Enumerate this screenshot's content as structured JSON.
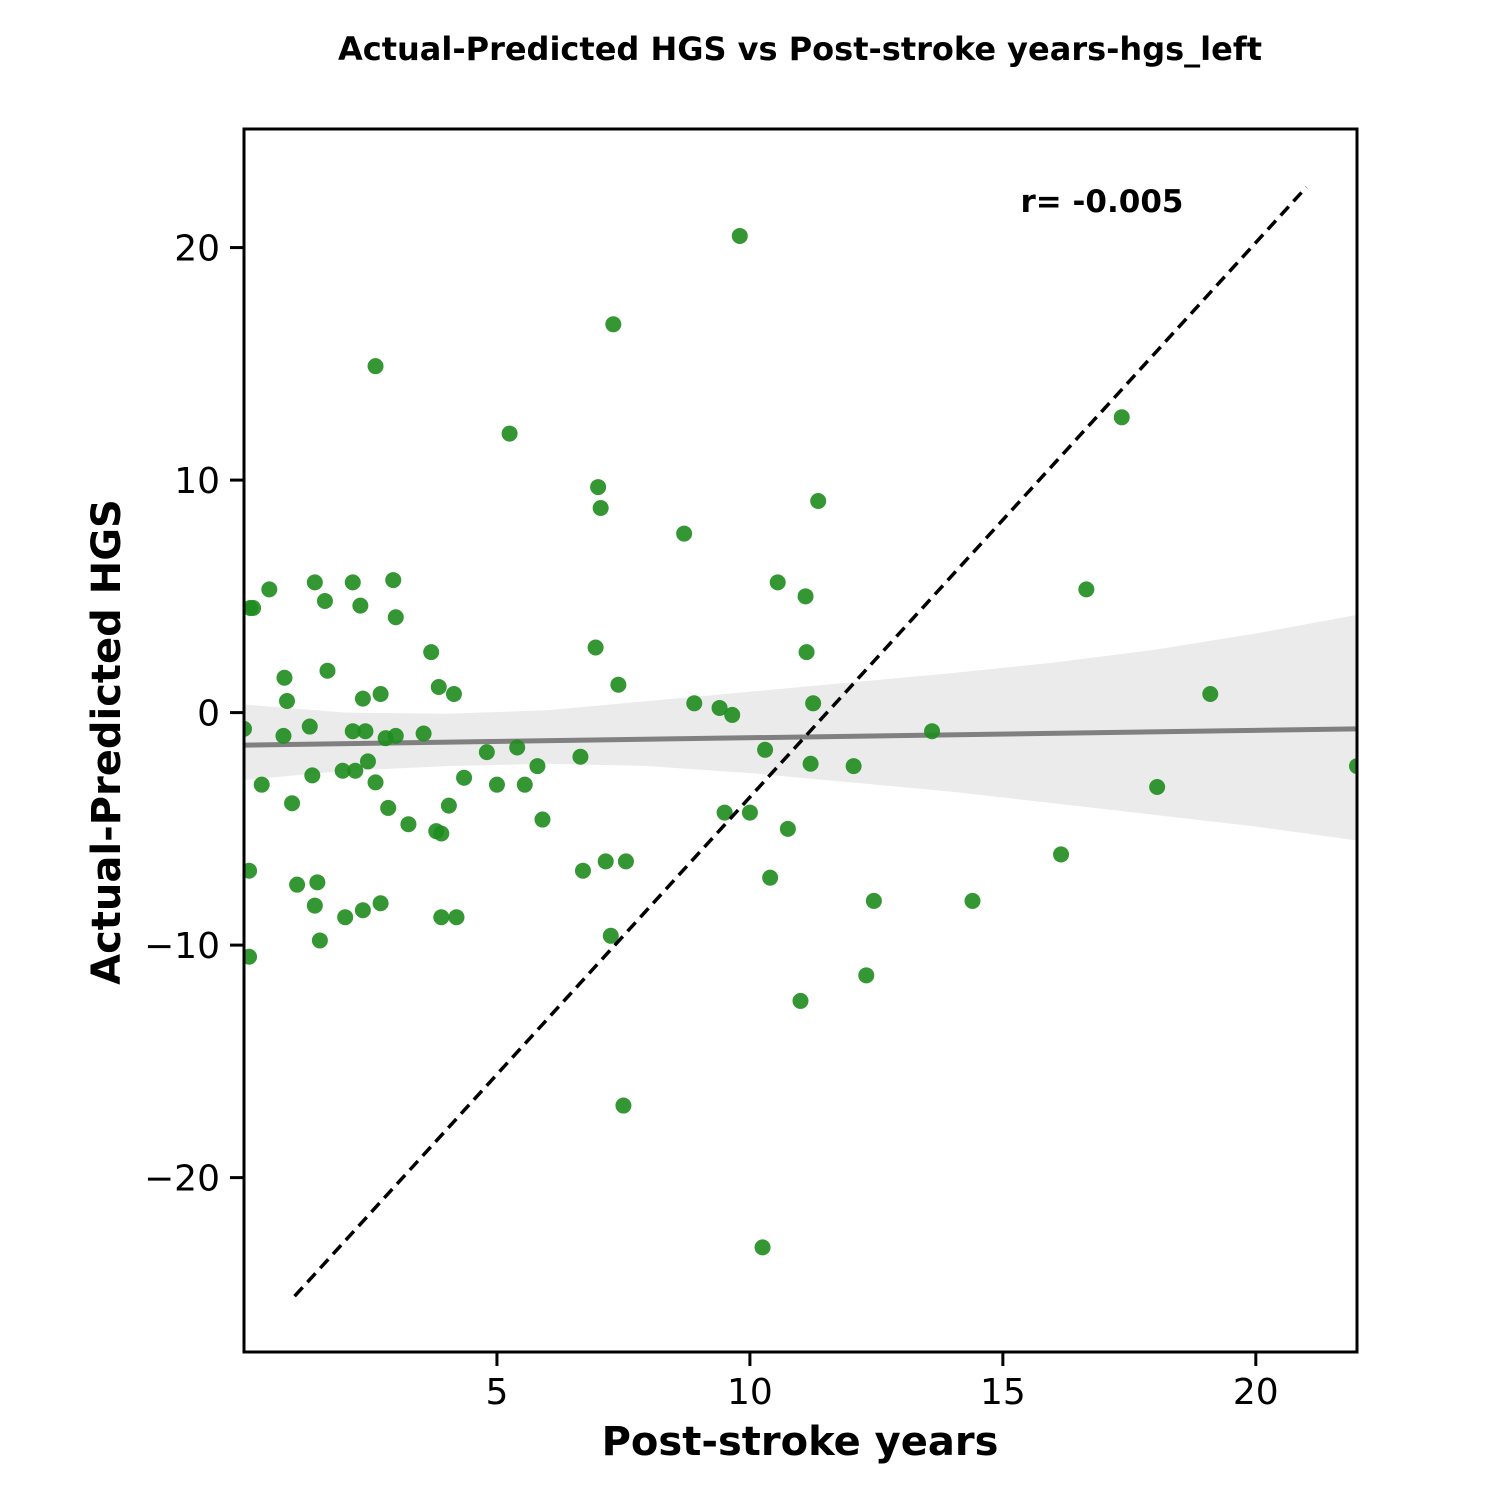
{
  "chart_data": {
    "type": "scatter",
    "title": "Actual-Predicted HGS vs Post-stroke years-hgs_left",
    "xlabel": "Post-stroke years",
    "ylabel": "Actual-Predicted HGS",
    "xlim": [
      0,
      22
    ],
    "ylim": [
      -27.5,
      25.1
    ],
    "xticks": [
      5,
      10,
      15,
      20
    ],
    "xtick_labels": [
      "5",
      "10",
      "15",
      "20"
    ],
    "yticks": [
      -20,
      -10,
      0,
      10,
      20
    ],
    "ytick_labels": [
      "−20",
      "−10",
      "0",
      "10",
      "20"
    ],
    "grid": false,
    "annotation": "r= -0.005",
    "colors": {
      "points": "#1e8c1e",
      "regression_line": "#808080",
      "confidence_band": "#ebebeb",
      "identity_line": "#000000"
    },
    "points": [
      {
        "x": 0.0,
        "y": -0.7
      },
      {
        "x": 0.12,
        "y": 4.5
      },
      {
        "x": 0.18,
        "y": 4.5
      },
      {
        "x": 0.5,
        "y": 5.3
      },
      {
        "x": 0.1,
        "y": -6.8
      },
      {
        "x": 0.1,
        "y": -10.5
      },
      {
        "x": 0.35,
        "y": -3.1
      },
      {
        "x": 0.8,
        "y": 1.5
      },
      {
        "x": 0.85,
        "y": 0.5
      },
      {
        "x": 0.78,
        "y": -1.0
      },
      {
        "x": 0.95,
        "y": -3.9
      },
      {
        "x": 1.05,
        "y": -7.4
      },
      {
        "x": 1.3,
        "y": -0.6
      },
      {
        "x": 1.35,
        "y": -2.7
      },
      {
        "x": 1.4,
        "y": 5.6
      },
      {
        "x": 1.45,
        "y": -7.3
      },
      {
        "x": 1.4,
        "y": -8.3
      },
      {
        "x": 1.5,
        "y": -9.8
      },
      {
        "x": 1.6,
        "y": 4.8
      },
      {
        "x": 1.65,
        "y": 1.8
      },
      {
        "x": 1.95,
        "y": -2.5
      },
      {
        "x": 2.0,
        "y": -8.8
      },
      {
        "x": 2.15,
        "y": 5.6
      },
      {
        "x": 2.15,
        "y": -0.8
      },
      {
        "x": 2.2,
        "y": -2.5
      },
      {
        "x": 2.3,
        "y": 4.6
      },
      {
        "x": 2.35,
        "y": 0.6
      },
      {
        "x": 2.35,
        "y": -8.5
      },
      {
        "x": 2.4,
        "y": -0.8
      },
      {
        "x": 2.45,
        "y": -2.1
      },
      {
        "x": 2.6,
        "y": 14.9
      },
      {
        "x": 2.6,
        "y": -3.0
      },
      {
        "x": 2.7,
        "y": 0.8
      },
      {
        "x": 2.7,
        "y": -8.2
      },
      {
        "x": 2.8,
        "y": -1.1
      },
      {
        "x": 2.85,
        "y": -4.1
      },
      {
        "x": 2.95,
        "y": 5.7
      },
      {
        "x": 3.0,
        "y": 4.1
      },
      {
        "x": 3.0,
        "y": -1.0
      },
      {
        "x": 3.25,
        "y": -4.8
      },
      {
        "x": 3.55,
        "y": -0.9
      },
      {
        "x": 3.7,
        "y": 2.6
      },
      {
        "x": 3.8,
        "y": -5.1
      },
      {
        "x": 3.85,
        "y": 1.1
      },
      {
        "x": 3.9,
        "y": -5.2
      },
      {
        "x": 3.9,
        "y": -8.8
      },
      {
        "x": 4.05,
        "y": -4.0
      },
      {
        "x": 4.15,
        "y": 0.8
      },
      {
        "x": 4.2,
        "y": -8.8
      },
      {
        "x": 4.35,
        "y": -2.8
      },
      {
        "x": 4.8,
        "y": -1.7
      },
      {
        "x": 5.0,
        "y": -3.1
      },
      {
        "x": 5.25,
        "y": 12.0
      },
      {
        "x": 5.4,
        "y": -1.5
      },
      {
        "x": 5.55,
        "y": -3.1
      },
      {
        "x": 5.8,
        "y": -2.3
      },
      {
        "x": 5.9,
        "y": -4.6
      },
      {
        "x": 6.65,
        "y": -1.9
      },
      {
        "x": 6.7,
        "y": -6.8
      },
      {
        "x": 6.95,
        "y": 2.8
      },
      {
        "x": 7.0,
        "y": 9.7
      },
      {
        "x": 7.05,
        "y": 8.8
      },
      {
        "x": 7.15,
        "y": -6.4
      },
      {
        "x": 7.25,
        "y": -9.6
      },
      {
        "x": 7.3,
        "y": 16.7
      },
      {
        "x": 7.4,
        "y": 1.2
      },
      {
        "x": 7.5,
        "y": -16.9
      },
      {
        "x": 7.55,
        "y": -6.4
      },
      {
        "x": 8.7,
        "y": 7.7
      },
      {
        "x": 8.9,
        "y": 0.4
      },
      {
        "x": 9.4,
        "y": 0.2
      },
      {
        "x": 9.5,
        "y": -4.3
      },
      {
        "x": 9.65,
        "y": -0.1
      },
      {
        "x": 9.8,
        "y": 20.5
      },
      {
        "x": 10.0,
        "y": -4.3
      },
      {
        "x": 10.25,
        "y": -23.0
      },
      {
        "x": 10.3,
        "y": -1.6
      },
      {
        "x": 10.4,
        "y": -7.1
      },
      {
        "x": 10.55,
        "y": 5.6
      },
      {
        "x": 10.75,
        "y": -5.0
      },
      {
        "x": 11.0,
        "y": -12.4
      },
      {
        "x": 11.1,
        "y": 5.0
      },
      {
        "x": 11.12,
        "y": 2.6
      },
      {
        "x": 11.2,
        "y": -2.2
      },
      {
        "x": 11.25,
        "y": 0.4
      },
      {
        "x": 11.35,
        "y": 9.1
      },
      {
        "x": 12.05,
        "y": -2.3
      },
      {
        "x": 12.3,
        "y": -11.3
      },
      {
        "x": 12.45,
        "y": -8.1
      },
      {
        "x": 13.6,
        "y": -0.8
      },
      {
        "x": 14.4,
        "y": -8.1
      },
      {
        "x": 16.15,
        "y": -6.1
      },
      {
        "x": 16.65,
        "y": 5.3
      },
      {
        "x": 17.35,
        "y": 12.7
      },
      {
        "x": 18.05,
        "y": -3.2
      },
      {
        "x": 19.1,
        "y": 0.8
      },
      {
        "x": 22.0,
        "y": -2.3
      }
    ],
    "regression": {
      "x": [
        0,
        22
      ],
      "y": [
        -1.4,
        -0.7
      ]
    },
    "confidence_band": {
      "x": [
        0,
        2,
        4,
        6,
        8,
        10,
        12,
        14,
        16,
        18,
        20,
        22
      ],
      "upper": [
        0.35,
        0.0,
        -0.05,
        0.1,
        0.5,
        0.9,
        1.3,
        1.7,
        2.15,
        2.7,
        3.4,
        4.2
      ],
      "lower": [
        -2.9,
        -2.5,
        -2.3,
        -2.2,
        -2.3,
        -2.6,
        -3.0,
        -3.4,
        -3.9,
        -4.4,
        -4.9,
        -5.5
      ]
    },
    "identity_line": {
      "x": [
        1.0,
        21.0
      ],
      "y": [
        -25.1,
        22.6
      ]
    }
  }
}
